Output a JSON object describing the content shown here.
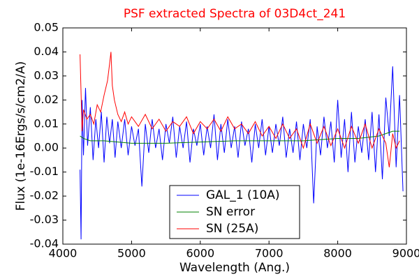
{
  "chart_data": {
    "type": "line",
    "title": "PSF extracted Spectra of 03D4ct_241",
    "xlabel": "Wavelength (Ang.)",
    "ylabel": "Flux (1e-16Ergs/s/cm2/A)",
    "xlim": [
      4000,
      9000
    ],
    "xticks": [
      4000,
      5000,
      6000,
      7000,
      8000,
      9000
    ],
    "ylim": [
      -0.04,
      0.05
    ],
    "yticks": [
      -0.04,
      -0.03,
      -0.02,
      -0.01,
      {
        "value": 0,
        "label": "0.00"
      },
      0.01,
      0.02,
      0.03,
      0.04,
      0.05
    ],
    "grid": false,
    "legend": "lower center",
    "series": [
      {
        "name": "GAL_1 (10A)",
        "color": "#0000ff",
        "x": [
          4250,
          4265,
          4280,
          4300,
          4330,
          4360,
          4400,
          4440,
          4480,
          4520,
          4560,
          4600,
          4640,
          4680,
          4720,
          4760,
          4800,
          4850,
          4900,
          4950,
          5000,
          5050,
          5100,
          5150,
          5200,
          5250,
          5300,
          5350,
          5400,
          5450,
          5500,
          5550,
          5600,
          5650,
          5700,
          5750,
          5800,
          5850,
          5900,
          5950,
          6000,
          6050,
          6100,
          6150,
          6200,
          6250,
          6300,
          6350,
          6400,
          6450,
          6500,
          6550,
          6600,
          6650,
          6700,
          6750,
          6800,
          6850,
          6900,
          6950,
          7000,
          7050,
          7100,
          7150,
          7200,
          7250,
          7300,
          7350,
          7400,
          7450,
          7500,
          7550,
          7600,
          7650,
          7700,
          7750,
          7800,
          7850,
          7900,
          7950,
          8000,
          8050,
          8100,
          8150,
          8200,
          8250,
          8300,
          8350,
          8400,
          8450,
          8500,
          8550,
          8600,
          8650,
          8700,
          8750,
          8800,
          8850,
          8900,
          8950
        ],
        "values": [
          -0.009,
          -0.038,
          0.02,
          -0.003,
          0.025,
          0.001,
          0.017,
          -0.005,
          0.012,
          0.0,
          0.015,
          -0.006,
          0.013,
          0.002,
          0.012,
          -0.004,
          0.011,
          0.0,
          0.012,
          -0.003,
          0.009,
          0.001,
          0.008,
          -0.016,
          0.01,
          -0.002,
          0.012,
          0.0,
          0.008,
          -0.005,
          0.01,
          0.002,
          0.013,
          -0.004,
          0.009,
          0.0,
          0.011,
          -0.006,
          0.008,
          0.001,
          0.01,
          -0.003,
          0.009,
          0.0,
          0.014,
          -0.005,
          0.01,
          -0.002,
          0.012,
          0.0,
          0.009,
          -0.004,
          0.011,
          0.001,
          0.008,
          -0.006,
          0.01,
          0.0,
          0.012,
          -0.003,
          0.009,
          -0.002,
          0.01,
          0.001,
          0.013,
          -0.004,
          0.008,
          -0.002,
          0.011,
          -0.005,
          0.01,
          0.0,
          0.012,
          -0.023,
          0.009,
          -0.003,
          0.013,
          0.0,
          0.011,
          -0.006,
          0.02,
          -0.004,
          0.012,
          -0.01,
          0.015,
          -0.006,
          0.009,
          -0.002,
          0.012,
          -0.005,
          0.015,
          -0.01,
          0.014,
          -0.013,
          0.021,
          0.005,
          0.034,
          -0.008,
          0.022,
          -0.018
        ]
      },
      {
        "name": "SN error",
        "color": "#008000",
        "x": [
          4250,
          4300,
          4400,
          4600,
          5000,
          5500,
          6000,
          6500,
          7000,
          7500,
          8000,
          8300,
          8600,
          8800,
          8900
        ],
        "values": [
          0.005,
          0.004,
          0.003,
          0.003,
          0.002,
          0.002,
          0.0025,
          0.003,
          0.003,
          0.003,
          0.004,
          0.004,
          0.005,
          0.007,
          0.007
        ]
      },
      {
        "name": "SN (25A)",
        "color": "#ff0000",
        "x": [
          4250,
          4280,
          4300,
          4350,
          4400,
          4450,
          4500,
          4550,
          4600,
          4650,
          4680,
          4700,
          4720,
          4750,
          4800,
          4850,
          4900,
          4950,
          5000,
          5100,
          5200,
          5300,
          5400,
          5500,
          5600,
          5700,
          5800,
          5900,
          6000,
          6100,
          6200,
          6300,
          6400,
          6500,
          6600,
          6700,
          6800,
          6900,
          7000,
          7100,
          7200,
          7300,
          7400,
          7500,
          7600,
          7700,
          7800,
          7900,
          8000,
          8100,
          8200,
          8300,
          8400,
          8500,
          8600,
          8700,
          8750,
          8800,
          8850,
          8900
        ],
        "values": [
          0.039,
          0.007,
          0.016,
          0.012,
          0.014,
          0.01,
          0.018,
          0.015,
          0.022,
          0.028,
          0.035,
          0.04,
          0.026,
          0.02,
          0.014,
          0.011,
          0.015,
          0.01,
          0.013,
          0.009,
          0.014,
          0.008,
          0.012,
          0.007,
          0.011,
          0.009,
          0.013,
          0.006,
          0.011,
          0.008,
          0.012,
          0.007,
          0.013,
          0.008,
          0.01,
          0.006,
          0.011,
          0.005,
          0.009,
          0.004,
          0.01,
          0.004,
          0.008,
          0.0,
          0.01,
          0.002,
          0.009,
          0.001,
          0.008,
          0.0,
          0.009,
          0.002,
          0.01,
          0.0,
          0.008,
          0.002,
          -0.008,
          0.006,
          0.0,
          0.003
        ]
      }
    ]
  }
}
